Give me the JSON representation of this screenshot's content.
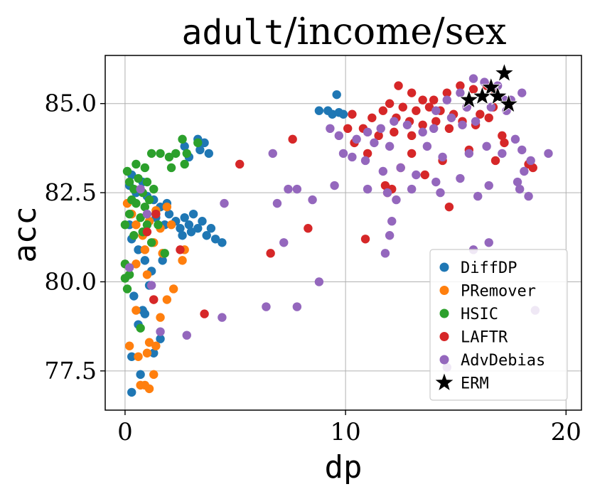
{
  "chart_data": {
    "type": "scatter",
    "title_mono": "adult",
    "title_rest": "/income/sex",
    "xlabel": "dp",
    "ylabel": "acc",
    "xlim": [
      -0.9,
      20.7
    ],
    "ylim": [
      76.4,
      86.35
    ],
    "xticks": [
      0,
      10,
      20
    ],
    "xtick_labels": [
      "0",
      "10",
      "20"
    ],
    "yticks": [
      77.5,
      80.0,
      82.5,
      85.0
    ],
    "ytick_labels": [
      "77.5",
      "80.0",
      "82.5",
      "85.0"
    ],
    "grid": true,
    "legend_position": "bottom-right",
    "series": [
      {
        "name": "DiffDP",
        "color": "#1f77b4",
        "marker": "circle",
        "points": [
          [
            9.6,
            85.25
          ],
          [
            8.8,
            84.8
          ],
          [
            9.2,
            84.8
          ],
          [
            9.4,
            84.7
          ],
          [
            9.7,
            84.75
          ],
          [
            9.9,
            84.7
          ],
          [
            3.3,
            84.0
          ],
          [
            3.6,
            83.9
          ],
          [
            3.4,
            83.7
          ],
          [
            3.8,
            83.6
          ],
          [
            2.7,
            83.8
          ],
          [
            2.9,
            83.5
          ],
          [
            0.3,
            83.0
          ],
          [
            0.2,
            82.7
          ],
          [
            0.5,
            82.5
          ],
          [
            0.8,
            82.8
          ],
          [
            1.0,
            82.4
          ],
          [
            1.3,
            82.3
          ],
          [
            1.6,
            82.1
          ],
          [
            1.9,
            82.2
          ],
          [
            1.4,
            81.8
          ],
          [
            1.8,
            81.6
          ],
          [
            2.0,
            81.9
          ],
          [
            2.3,
            81.7
          ],
          [
            2.5,
            81.5
          ],
          [
            2.7,
            81.8
          ],
          [
            2.9,
            81.6
          ],
          [
            3.1,
            81.9
          ],
          [
            3.3,
            81.5
          ],
          [
            3.5,
            81.7
          ],
          [
            3.7,
            81.3
          ],
          [
            3.9,
            81.5
          ],
          [
            4.1,
            81.2
          ],
          [
            4.4,
            81.1
          ],
          [
            2.6,
            81.3
          ],
          [
            3.0,
            81.4
          ],
          [
            0.2,
            81.6
          ],
          [
            0.3,
            81.2
          ],
          [
            0.6,
            80.9
          ],
          [
            0.9,
            80.6
          ],
          [
            1.2,
            80.3
          ],
          [
            1.7,
            80.6
          ],
          [
            0.4,
            79.6
          ],
          [
            0.8,
            79.2
          ],
          [
            1.1,
            79.9
          ],
          [
            0.6,
            78.8
          ],
          [
            0.9,
            79.1
          ],
          [
            1.6,
            78.4
          ],
          [
            1.3,
            78.0
          ],
          [
            0.3,
            77.9
          ],
          [
            0.7,
            77.4
          ],
          [
            0.3,
            76.9
          ]
        ]
      },
      {
        "name": "PRemover",
        "color": "#ff7f0e",
        "marker": "circle",
        "points": [
          [
            0.1,
            82.2
          ],
          [
            0.3,
            81.9
          ],
          [
            0.5,
            81.6
          ],
          [
            0.8,
            81.3
          ],
          [
            1.1,
            81.7
          ],
          [
            1.4,
            82.0
          ],
          [
            1.6,
            81.5
          ],
          [
            1.9,
            82.1
          ],
          [
            2.1,
            81.6
          ],
          [
            1.3,
            81.1
          ],
          [
            0.9,
            80.9
          ],
          [
            1.7,
            80.8
          ],
          [
            2.6,
            80.6
          ],
          [
            2.7,
            80.9
          ],
          [
            0.5,
            80.5
          ],
          [
            1.0,
            80.2
          ],
          [
            1.3,
            79.5
          ],
          [
            2.2,
            79.8
          ],
          [
            1.9,
            79.5
          ],
          [
            0.5,
            79.2
          ],
          [
            1.6,
            79.0
          ],
          [
            0.2,
            78.2
          ],
          [
            1.1,
            78.3
          ],
          [
            1.4,
            78.2
          ],
          [
            0.6,
            77.9
          ],
          [
            1.0,
            78.0
          ],
          [
            1.3,
            77.4
          ],
          [
            0.7,
            77.1
          ],
          [
            1.1,
            77.0
          ],
          [
            0.9,
            77.1
          ]
        ]
      },
      {
        "name": "HSIC",
        "color": "#2ca02c",
        "marker": "circle",
        "points": [
          [
            0.1,
            83.1
          ],
          [
            0.5,
            83.3
          ],
          [
            0.9,
            83.2
          ],
          [
            1.2,
            83.6
          ],
          [
            1.6,
            83.6
          ],
          [
            2.0,
            83.5
          ],
          [
            2.3,
            83.6
          ],
          [
            2.6,
            84.0
          ],
          [
            2.8,
            83.6
          ],
          [
            3.3,
            83.9
          ],
          [
            2.1,
            83.2
          ],
          [
            2.7,
            83.3
          ],
          [
            0.2,
            82.8
          ],
          [
            0.4,
            82.6
          ],
          [
            0.6,
            82.9
          ],
          [
            0.8,
            82.5
          ],
          [
            1.0,
            82.8
          ],
          [
            1.3,
            82.6
          ],
          [
            0.3,
            82.3
          ],
          [
            0.5,
            82.2
          ],
          [
            0.9,
            82.1
          ],
          [
            1.1,
            82.3
          ],
          [
            1.4,
            81.9
          ],
          [
            0.2,
            81.9
          ],
          [
            0.7,
            81.8
          ],
          [
            1.0,
            81.6
          ],
          [
            1.5,
            81.6
          ],
          [
            0.0,
            81.6
          ],
          [
            0.4,
            81.3
          ],
          [
            0.8,
            81.4
          ],
          [
            1.2,
            81.1
          ],
          [
            1.8,
            80.8
          ],
          [
            0.0,
            80.5
          ],
          [
            0.2,
            80.2
          ],
          [
            0.0,
            80.1
          ],
          [
            0.1,
            79.8
          ],
          [
            0.7,
            78.7
          ]
        ]
      },
      {
        "name": "LAFTR",
        "color": "#d62728",
        "marker": "circle",
        "points": [
          [
            12.4,
            85.5
          ],
          [
            13.0,
            85.3
          ],
          [
            13.5,
            85.1
          ],
          [
            14.0,
            85.1
          ],
          [
            14.6,
            85.3
          ],
          [
            15.2,
            85.5
          ],
          [
            15.8,
            85.4
          ],
          [
            16.4,
            85.5
          ],
          [
            16.8,
            85.3
          ],
          [
            12.0,
            85.0
          ],
          [
            12.6,
            84.9
          ],
          [
            13.2,
            84.8
          ],
          [
            13.8,
            84.9
          ],
          [
            14.3,
            84.8
          ],
          [
            14.9,
            84.7
          ],
          [
            15.5,
            84.9
          ],
          [
            16.1,
            84.7
          ],
          [
            16.7,
            84.9
          ],
          [
            11.2,
            84.6
          ],
          [
            11.7,
            84.8
          ],
          [
            12.3,
            84.6
          ],
          [
            12.9,
            84.5
          ],
          [
            13.5,
            84.4
          ],
          [
            14.1,
            84.5
          ],
          [
            14.7,
            84.3
          ],
          [
            15.3,
            84.5
          ],
          [
            15.9,
            84.4
          ],
          [
            10.3,
            84.7
          ],
          [
            10.8,
            84.3
          ],
          [
            11.5,
            84.1
          ],
          [
            12.2,
            84.2
          ],
          [
            13.0,
            84.1
          ],
          [
            16.5,
            84.6
          ],
          [
            17.1,
            84.1
          ],
          [
            17.2,
            83.9
          ],
          [
            10.1,
            84.3
          ],
          [
            10.4,
            83.9
          ],
          [
            7.6,
            84.0
          ],
          [
            11.0,
            83.6
          ],
          [
            12.5,
            83.2
          ],
          [
            13.0,
            83.6
          ],
          [
            14.4,
            83.4
          ],
          [
            15.6,
            83.7
          ],
          [
            16.8,
            83.4
          ],
          [
            18.3,
            83.3
          ],
          [
            18.5,
            83.2
          ],
          [
            5.2,
            83.3
          ],
          [
            13.6,
            83.0
          ],
          [
            12.1,
            82.6
          ],
          [
            14.7,
            82.1
          ],
          [
            11.9,
            82.5
          ],
          [
            11.8,
            82.7
          ],
          [
            8.3,
            81.5
          ],
          [
            10.9,
            81.2
          ],
          [
            6.6,
            80.8
          ],
          [
            3.6,
            79.1
          ],
          [
            1.3,
            79.5
          ],
          [
            1.4,
            81.9
          ],
          [
            2.5,
            80.9
          ],
          [
            1.0,
            81.4
          ]
        ]
      },
      {
        "name": "AdvDebias",
        "color": "#9467bd",
        "marker": "circle",
        "points": [
          [
            15.8,
            85.7
          ],
          [
            16.3,
            85.6
          ],
          [
            16.9,
            85.5
          ],
          [
            15.2,
            85.3
          ],
          [
            14.6,
            85.1
          ],
          [
            14.1,
            84.8
          ],
          [
            15.5,
            84.9
          ],
          [
            17.2,
            85.1
          ],
          [
            17.5,
            85.1
          ],
          [
            18.0,
            85.3
          ],
          [
            17.3,
            84.8
          ],
          [
            16.6,
            84.9
          ],
          [
            15.9,
            84.5
          ],
          [
            15.3,
            84.4
          ],
          [
            14.8,
            84.6
          ],
          [
            14.0,
            84.3
          ],
          [
            13.5,
            84.2
          ],
          [
            12.8,
            84.4
          ],
          [
            12.2,
            84.5
          ],
          [
            11.6,
            84.3
          ],
          [
            11.0,
            84.2
          ],
          [
            10.5,
            84.0
          ],
          [
            9.7,
            84.1
          ],
          [
            9.3,
            84.3
          ],
          [
            11.3,
            83.9
          ],
          [
            12.0,
            83.8
          ],
          [
            13.7,
            83.8
          ],
          [
            14.4,
            83.5
          ],
          [
            15.6,
            83.6
          ],
          [
            16.4,
            83.8
          ],
          [
            17.1,
            83.6
          ],
          [
            17.7,
            84.0
          ],
          [
            18.0,
            83.7
          ],
          [
            18.4,
            83.4
          ],
          [
            19.2,
            83.6
          ],
          [
            18.1,
            83.1
          ],
          [
            17.8,
            82.8
          ],
          [
            17.9,
            82.6
          ],
          [
            18.3,
            82.4
          ],
          [
            9.9,
            83.6
          ],
          [
            10.3,
            83.5
          ],
          [
            10.9,
            83.4
          ],
          [
            11.7,
            83.1
          ],
          [
            12.5,
            83.2
          ],
          [
            13.2,
            83.0
          ],
          [
            14.1,
            82.8
          ],
          [
            15.2,
            82.9
          ],
          [
            16.5,
            82.7
          ],
          [
            11.0,
            82.6
          ],
          [
            11.9,
            82.5
          ],
          [
            12.3,
            82.3
          ],
          [
            13.0,
            82.6
          ],
          [
            14.3,
            82.5
          ],
          [
            16.0,
            82.4
          ],
          [
            12.1,
            81.7
          ],
          [
            12.0,
            81.3
          ],
          [
            11.8,
            80.8
          ],
          [
            7.4,
            82.6
          ],
          [
            6.7,
            83.6
          ],
          [
            6.9,
            82.2
          ],
          [
            7.8,
            82.6
          ],
          [
            9.5,
            82.7
          ],
          [
            8.5,
            82.3
          ],
          [
            4.5,
            82.2
          ],
          [
            7.2,
            81.1
          ],
          [
            6.4,
            79.3
          ],
          [
            7.8,
            79.3
          ],
          [
            8.8,
            80.0
          ],
          [
            4.4,
            79.0
          ],
          [
            2.8,
            78.5
          ],
          [
            1.6,
            78.6
          ],
          [
            1.2,
            79.9
          ],
          [
            1.0,
            81.9
          ],
          [
            0.7,
            82.6
          ],
          [
            0.2,
            80.4
          ],
          [
            16.5,
            81.1
          ],
          [
            15.8,
            80.9
          ],
          [
            18.6,
            79.2
          ],
          [
            14.6,
            77.6
          ]
        ]
      },
      {
        "name": "ERM",
        "color": "#000000",
        "marker": "star",
        "points": [
          [
            17.2,
            85.85
          ],
          [
            16.6,
            85.45
          ],
          [
            16.2,
            85.2
          ],
          [
            15.6,
            85.1
          ],
          [
            16.9,
            85.2
          ],
          [
            17.4,
            84.98
          ]
        ]
      }
    ]
  }
}
